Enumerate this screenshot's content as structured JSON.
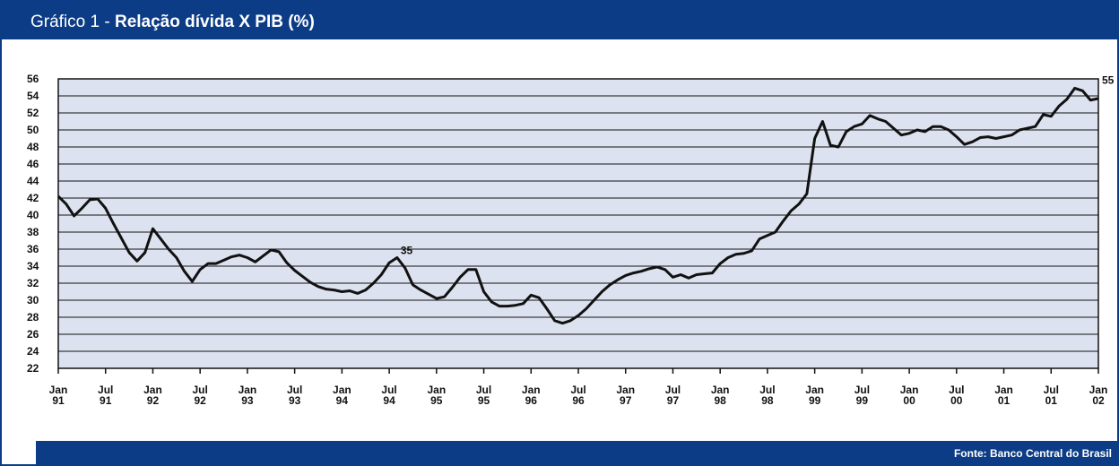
{
  "chart_data": {
    "type": "line",
    "title_prefix": "Gráfico 1 -",
    "title": "Relação dívida X PIB (%)",
    "source": "Fonte: Banco Central do Brasil",
    "x": [
      "1991-01",
      "1991-02",
      "1991-03",
      "1991-04",
      "1991-05",
      "1991-06",
      "1991-07",
      "1991-08",
      "1991-09",
      "1991-10",
      "1991-11",
      "1991-12",
      "1992-01",
      "1992-02",
      "1992-03",
      "1992-04",
      "1992-05",
      "1992-06",
      "1992-07",
      "1992-08",
      "1992-09",
      "1992-10",
      "1992-11",
      "1992-12",
      "1993-01",
      "1993-02",
      "1993-03",
      "1993-04",
      "1993-05",
      "1993-06",
      "1993-07",
      "1993-08",
      "1993-09",
      "1993-10",
      "1993-11",
      "1993-12",
      "1994-01",
      "1994-02",
      "1994-03",
      "1994-04",
      "1994-05",
      "1994-06",
      "1994-07",
      "1994-08",
      "1994-09",
      "1994-10",
      "1994-11",
      "1994-12",
      "1995-01",
      "1995-02",
      "1995-03",
      "1995-04",
      "1995-05",
      "1995-06",
      "1995-07",
      "1995-08",
      "1995-09",
      "1995-10",
      "1995-11",
      "1995-12",
      "1996-01",
      "1996-02",
      "1996-03",
      "1996-04",
      "1996-05",
      "1996-06",
      "1996-07",
      "1996-08",
      "1996-09",
      "1996-10",
      "1996-11",
      "1996-12",
      "1997-01",
      "1997-02",
      "1997-03",
      "1997-04",
      "1997-05",
      "1997-06",
      "1997-07",
      "1997-08",
      "1997-09",
      "1997-10",
      "1997-11",
      "1997-12",
      "1998-01",
      "1998-02",
      "1998-03",
      "1998-04",
      "1998-05",
      "1998-06",
      "1998-07",
      "1998-08",
      "1998-09",
      "1998-10",
      "1998-11",
      "1998-12",
      "1999-01",
      "1999-02",
      "1999-03",
      "1999-04",
      "1999-05",
      "1999-06",
      "1999-07",
      "1999-08",
      "1999-09",
      "1999-10",
      "1999-11",
      "1999-12",
      "2000-01",
      "2000-02",
      "2000-03",
      "2000-04",
      "2000-05",
      "2000-06",
      "2000-07",
      "2000-08",
      "2000-09",
      "2000-10",
      "2000-11",
      "2000-12",
      "2001-01",
      "2001-02",
      "2001-03",
      "2001-04",
      "2001-05",
      "2001-06",
      "2001-07",
      "2001-08",
      "2001-09",
      "2001-10",
      "2001-11",
      "2001-12",
      "2002-01"
    ],
    "series": [
      {
        "name": "Relação dívida X PIB",
        "color": "#111111",
        "values": [
          42.2,
          41.3,
          39.9,
          40.8,
          41.8,
          41.9,
          40.8,
          39.0,
          37.3,
          35.6,
          34.6,
          35.6,
          38.4,
          37.2,
          36.0,
          35.0,
          33.4,
          32.2,
          33.6,
          34.3,
          34.3,
          34.7,
          35.1,
          35.3,
          35.0,
          34.5,
          35.2,
          35.9,
          35.7,
          34.4,
          33.5,
          32.8,
          32.1,
          31.6,
          31.3,
          31.2,
          31.0,
          31.1,
          30.8,
          31.2,
          32.0,
          33.0,
          34.4,
          35.0,
          33.8,
          31.8,
          31.2,
          30.7,
          30.2,
          30.4,
          31.5,
          32.7,
          33.6,
          33.6,
          31.0,
          29.8,
          29.3,
          29.3,
          29.4,
          29.6,
          30.6,
          30.3,
          29.0,
          27.6,
          27.3,
          27.6,
          28.2,
          29.0,
          30.0,
          31.0,
          31.8,
          32.4,
          32.9,
          33.2,
          33.4,
          33.7,
          33.9,
          33.6,
          32.7,
          33.0,
          32.6,
          33.0,
          33.1,
          33.2,
          34.3,
          35.0,
          35.4,
          35.5,
          35.8,
          37.2,
          37.6,
          38.0,
          39.3,
          40.5,
          41.3,
          42.5,
          49.0,
          51.0,
          48.2,
          48.0,
          49.8,
          50.4,
          50.7,
          51.7,
          51.3,
          51.0,
          50.2,
          49.4,
          49.6,
          50.0,
          49.8,
          50.4,
          50.4,
          50.0,
          49.2,
          48.3,
          48.6,
          49.1,
          49.2,
          49.0,
          49.2,
          49.4,
          50.0,
          50.2,
          50.4,
          51.8,
          51.6,
          52.8,
          53.6,
          54.9,
          54.6,
          53.5,
          53.7
        ]
      }
    ],
    "ylim": [
      22,
      56
    ],
    "yticks": [
      22,
      24,
      26,
      28,
      30,
      32,
      34,
      36,
      38,
      40,
      42,
      44,
      46,
      48,
      50,
      52,
      54,
      56
    ],
    "xlim": [
      "1991-01",
      "2002-01"
    ],
    "xticks": [
      {
        "value": "1991-01",
        "label": [
          "Jan",
          "91"
        ]
      },
      {
        "value": "1991-07",
        "label": [
          "Jul",
          "91"
        ]
      },
      {
        "value": "1992-01",
        "label": [
          "Jan",
          "92"
        ]
      },
      {
        "value": "1992-07",
        "label": [
          "Jul",
          "92"
        ]
      },
      {
        "value": "1993-01",
        "label": [
          "Jan",
          "93"
        ]
      },
      {
        "value": "1993-07",
        "label": [
          "Jul",
          "93"
        ]
      },
      {
        "value": "1994-01",
        "label": [
          "Jan",
          "94"
        ]
      },
      {
        "value": "1994-07",
        "label": [
          "Jul",
          "94"
        ]
      },
      {
        "value": "1995-01",
        "label": [
          "Jan",
          "95"
        ]
      },
      {
        "value": "1995-07",
        "label": [
          "Jul",
          "95"
        ]
      },
      {
        "value": "1996-01",
        "label": [
          "Jan",
          "96"
        ]
      },
      {
        "value": "1996-07",
        "label": [
          "Jul",
          "96"
        ]
      },
      {
        "value": "1997-01",
        "label": [
          "Jan",
          "97"
        ]
      },
      {
        "value": "1997-07",
        "label": [
          "Jul",
          "97"
        ]
      },
      {
        "value": "1998-01",
        "label": [
          "Jan",
          "98"
        ]
      },
      {
        "value": "1998-07",
        "label": [
          "Jul",
          "98"
        ]
      },
      {
        "value": "1999-01",
        "label": [
          "Jan",
          "99"
        ]
      },
      {
        "value": "1999-07",
        "label": [
          "Jul",
          "99"
        ]
      },
      {
        "value": "2000-01",
        "label": [
          "Jan",
          "00"
        ]
      },
      {
        "value": "2000-07",
        "label": [
          "Jul",
          "00"
        ]
      },
      {
        "value": "2001-01",
        "label": [
          "Jan",
          "01"
        ]
      },
      {
        "value": "2001-07",
        "label": [
          "Jul",
          "01"
        ]
      },
      {
        "value": "2002-01",
        "label": [
          "Jan",
          "02"
        ]
      }
    ],
    "grid": true,
    "annotations": [
      {
        "x": "1994-08",
        "y": 35,
        "label": "35"
      },
      {
        "x": "2002-01",
        "y": 55,
        "label": "55"
      }
    ]
  }
}
